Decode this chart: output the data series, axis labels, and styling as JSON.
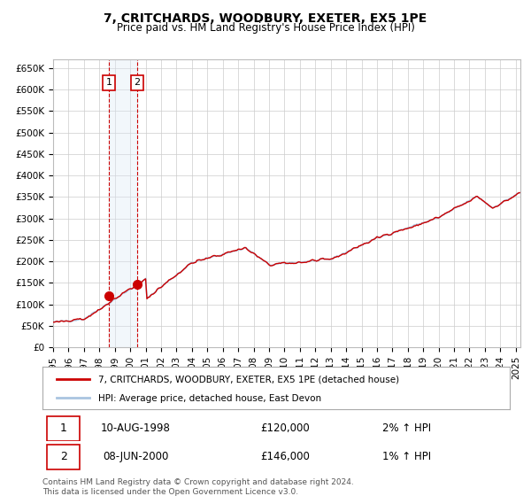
{
  "title": "7, CRITCHARDS, WOODBURY, EXETER, EX5 1PE",
  "subtitle": "Price paid vs. HM Land Registry's House Price Index (HPI)",
  "legend_line1": "7, CRITCHARDS, WOODBURY, EXETER, EX5 1PE (detached house)",
  "legend_line2": "HPI: Average price, detached house, East Devon",
  "sale1_label": "1",
  "sale1_date_str": "10-AUG-1998",
  "sale1_date_num": 1998.61,
  "sale1_price": 120000,
  "sale1_hpi_pct": "2% ↑ HPI",
  "sale2_label": "2",
  "sale2_date_str": "08-JUN-2000",
  "sale2_date_num": 2000.44,
  "sale2_price": 146000,
  "sale2_hpi_pct": "1% ↑ HPI",
  "hpi_line_color": "#aac4e0",
  "price_line_color": "#cc0000",
  "sale_dot_color": "#cc0000",
  "vline_color": "#cc0000",
  "shade_color": "#dce9f5",
  "grid_color": "#cccccc",
  "background_color": "#ffffff",
  "footer_text": "Contains HM Land Registry data © Crown copyright and database right 2024.\nThis data is licensed under the Open Government Licence v3.0.",
  "ylim": [
    0,
    670000
  ],
  "xlim_start": 1995.0,
  "xlim_end": 2025.3,
  "yticks": [
    0,
    50000,
    100000,
    150000,
    200000,
    250000,
    300000,
    350000,
    400000,
    450000,
    500000,
    550000,
    600000,
    650000
  ],
  "ytick_labels": [
    "£0",
    "£50K",
    "£100K",
    "£150K",
    "£200K",
    "£250K",
    "£300K",
    "£350K",
    "£400K",
    "£450K",
    "£500K",
    "£550K",
    "£600K",
    "£650K"
  ],
  "xticks": [
    1995,
    1996,
    1997,
    1998,
    1999,
    2000,
    2001,
    2002,
    2003,
    2004,
    2005,
    2006,
    2007,
    2008,
    2009,
    2010,
    2011,
    2012,
    2013,
    2014,
    2015,
    2016,
    2017,
    2018,
    2019,
    2020,
    2021,
    2022,
    2023,
    2024,
    2025
  ]
}
